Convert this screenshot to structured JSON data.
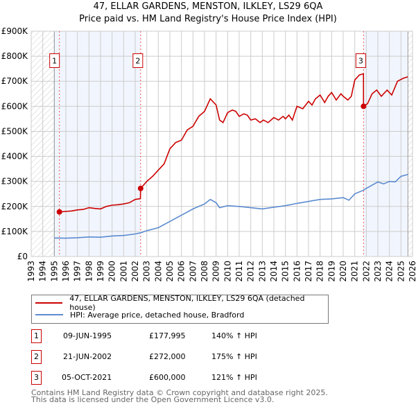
{
  "chart_data": {
    "type": "line",
    "title": "47, ELLAR GARDENS, MENSTON, ILKLEY, LS29 6QA",
    "subtitle": "Price paid vs. HM Land Registry's House Price Index (HPI)",
    "xlim": [
      1993,
      2026
    ],
    "ylim": [
      0,
      900000
    ],
    "x_ticks": [
      "1993",
      "1994",
      "1995",
      "1996",
      "1997",
      "1998",
      "1999",
      "2000",
      "2001",
      "2002",
      "2003",
      "2004",
      "2005",
      "2006",
      "2007",
      "2008",
      "2009",
      "2010",
      "2011",
      "2012",
      "2013",
      "2014",
      "2015",
      "2016",
      "2017",
      "2018",
      "2019",
      "2020",
      "2021",
      "2022",
      "2023",
      "2024",
      "2025",
      "2026"
    ],
    "y_ticks": [
      "£0",
      "£100K",
      "£200K",
      "£300K",
      "£400K",
      "£500K",
      "£600K",
      "£700K",
      "£800K",
      "£900K"
    ],
    "grid": true,
    "shaded_ranges": [
      [
        1995,
        2002.47
      ],
      [
        2021.76,
        2025.6
      ]
    ],
    "hatched_ranges": [
      [
        1993,
        1995
      ],
      [
        2025.6,
        2026
      ]
    ],
    "series": [
      {
        "name": "47, ELLAR GARDENS, MENSTON, ILKLEY, LS29 6QA (detached house)",
        "color": "#cc0000",
        "x": [
          1995.44,
          1996,
          1996.5,
          1997,
          1997.5,
          1998,
          1998.5,
          1999,
          1999.5,
          2000,
          2000.5,
          2001,
          2001.5,
          2002,
          2002.45,
          2002.47,
          2003,
          2003.5,
          2004,
          2004.5,
          2005,
          2005.5,
          2006,
          2006.5,
          2007,
          2007.5,
          2008,
          2008.5,
          2009,
          2009.3,
          2009.6,
          2010,
          2010.4,
          2010.7,
          2011,
          2011.4,
          2011.7,
          2012,
          2012.4,
          2012.8,
          2013.1,
          2013.5,
          2014,
          2014.4,
          2014.8,
          2015,
          2015.3,
          2015.6,
          2016,
          2016.5,
          2017,
          2017.3,
          2017.6,
          2018,
          2018.4,
          2018.7,
          2019,
          2019.4,
          2019.8,
          2020,
          2020.4,
          2020.7,
          2021,
          2021.4,
          2021.75,
          2021.76,
          2022.1,
          2022.5,
          2022.9,
          2023.3,
          2023.8,
          2024.2,
          2024.7,
          2025.2,
          2025.6
        ],
        "y": [
          177995,
          180000,
          182000,
          186000,
          188000,
          195000,
          192000,
          190000,
          200000,
          205000,
          207000,
          210000,
          215000,
          228000,
          231000,
          272000,
          300000,
          320000,
          345000,
          370000,
          430000,
          455000,
          465000,
          505000,
          520000,
          560000,
          580000,
          630000,
          605000,
          545000,
          535000,
          575000,
          585000,
          580000,
          560000,
          570000,
          565000,
          545000,
          550000,
          535000,
          545000,
          535000,
          555000,
          545000,
          560000,
          550000,
          565000,
          545000,
          600000,
          590000,
          620000,
          605000,
          630000,
          645000,
          615000,
          640000,
          655000,
          625000,
          650000,
          640000,
          625000,
          640000,
          705000,
          725000,
          730000,
          600000,
          610000,
          650000,
          665000,
          640000,
          665000,
          645000,
          700000,
          712000,
          718000
        ]
      },
      {
        "name": "HPI: Average price, detached house, Bradford",
        "color": "#5b8bd0",
        "x": [
          1995,
          1996,
          1997,
          1998,
          1999,
          2000,
          2001,
          2002,
          2002.5,
          2003,
          2004,
          2005,
          2006,
          2007,
          2008,
          2008.5,
          2009,
          2009.3,
          2010,
          2011,
          2012,
          2013,
          2014,
          2015,
          2016,
          2017,
          2018,
          2019,
          2020,
          2020.5,
          2021,
          2021.76,
          2022,
          2023,
          2023.5,
          2024,
          2024.5,
          2025,
          2025.6
        ],
        "y": [
          74000,
          73000,
          75000,
          78000,
          77000,
          82000,
          84000,
          90000,
          95000,
          103000,
          115000,
          140000,
          165000,
          190000,
          210000,
          228000,
          215000,
          195000,
          203000,
          200000,
          195000,
          190000,
          197000,
          203000,
          212000,
          220000,
          228000,
          230000,
          235000,
          225000,
          250000,
          265000,
          272000,
          298000,
          290000,
          300000,
          298000,
          320000,
          328000
        ]
      }
    ],
    "sales": [
      {
        "label": "1",
        "x": 1995.44,
        "y": 177995
      },
      {
        "label": "2",
        "x": 2002.47,
        "y": 272000
      },
      {
        "label": "3",
        "x": 2021.76,
        "y": 600000
      }
    ]
  },
  "legend": [
    "47, ELLAR GARDENS, MENSTON, ILKLEY, LS29 6QA (detached house)",
    "HPI: Average price, detached house, Bradford"
  ],
  "transactions": [
    {
      "num": "1",
      "date": "09-JUN-1995",
      "price": "£177,995",
      "hpi": "140% ↑ HPI"
    },
    {
      "num": "2",
      "date": "21-JUN-2002",
      "price": "£272,000",
      "hpi": "175% ↑ HPI"
    },
    {
      "num": "3",
      "date": "05-OCT-2021",
      "price": "£600,000",
      "hpi": "121% ↑ HPI"
    }
  ],
  "footer": [
    "Contains HM Land Registry data © Crown copyright and database right 2025.",
    "This data is licensed under the Open Government Licence v3.0."
  ]
}
